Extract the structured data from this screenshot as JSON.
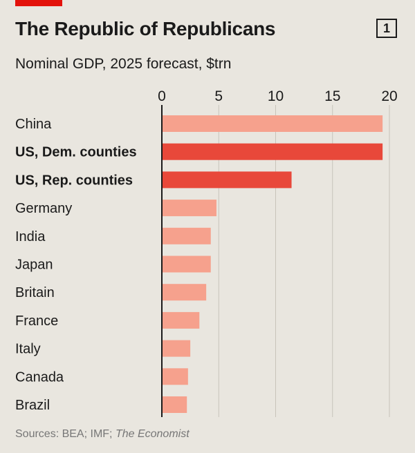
{
  "chart_number": "1",
  "source": {
    "prefix": "Sources: BEA; IMF; ",
    "italic": "The Economist"
  },
  "colors": {
    "background": "#e9e6df",
    "bar_light": "#f6a18d",
    "bar_highlight": "#e8483a",
    "grid": "#c8c3ba",
    "axis": "#1a1a1a",
    "top_accent": "#e3120b"
  },
  "chart_data": {
    "type": "bar",
    "orientation": "horizontal",
    "title": "The Republic of Republicans",
    "subtitle": "Nominal GDP, 2025 forecast, $trn",
    "categories": [
      "China",
      "US, Dem. counties",
      "US, Rep. counties",
      "Germany",
      "India",
      "Japan",
      "Britain",
      "France",
      "Italy",
      "Canada",
      "Brazil"
    ],
    "values": [
      19.4,
      19.4,
      11.4,
      4.8,
      4.3,
      4.3,
      3.9,
      3.3,
      2.5,
      2.3,
      2.2
    ],
    "highlighted": [
      "US, Dem. counties",
      "US, Rep. counties"
    ],
    "xlim": [
      0,
      20
    ],
    "xticks": [
      0,
      5,
      10,
      15,
      20
    ],
    "xaxis_position": "top",
    "grid": true
  }
}
